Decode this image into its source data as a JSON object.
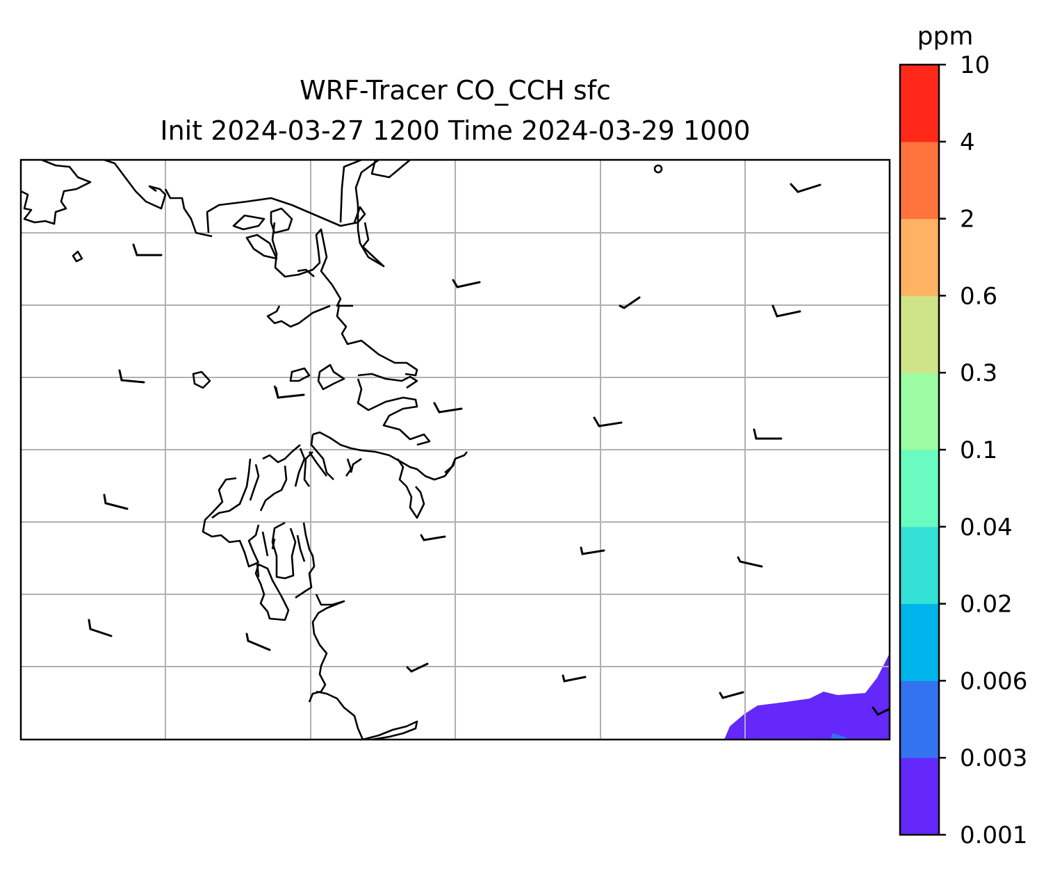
{
  "title": {
    "line1": "WRF-Tracer CO_CCH sfc",
    "line2": "Init 2024-03-27 1200 Time 2024-03-29 1000"
  },
  "colorbar": {
    "unit": "ppm",
    "levels": [
      "0.001",
      "0.003",
      "0.006",
      "0.02",
      "0.04",
      "0.1",
      "0.3",
      "0.6",
      "2",
      "4",
      "10"
    ],
    "colors": [
      "#6428fa",
      "#3473f0",
      "#00b4eb",
      "#33e0d6",
      "#69fbc0",
      "#9bfca1",
      "#cfe388",
      "#ffb262",
      "#ff733c",
      "#ff2819"
    ]
  },
  "map": {
    "gridlines": true,
    "grid_color": "#b0b0b0",
    "coastline_color": "#000000",
    "plume_color": "#6428fa",
    "plume_core_color": "#3473f0"
  }
}
